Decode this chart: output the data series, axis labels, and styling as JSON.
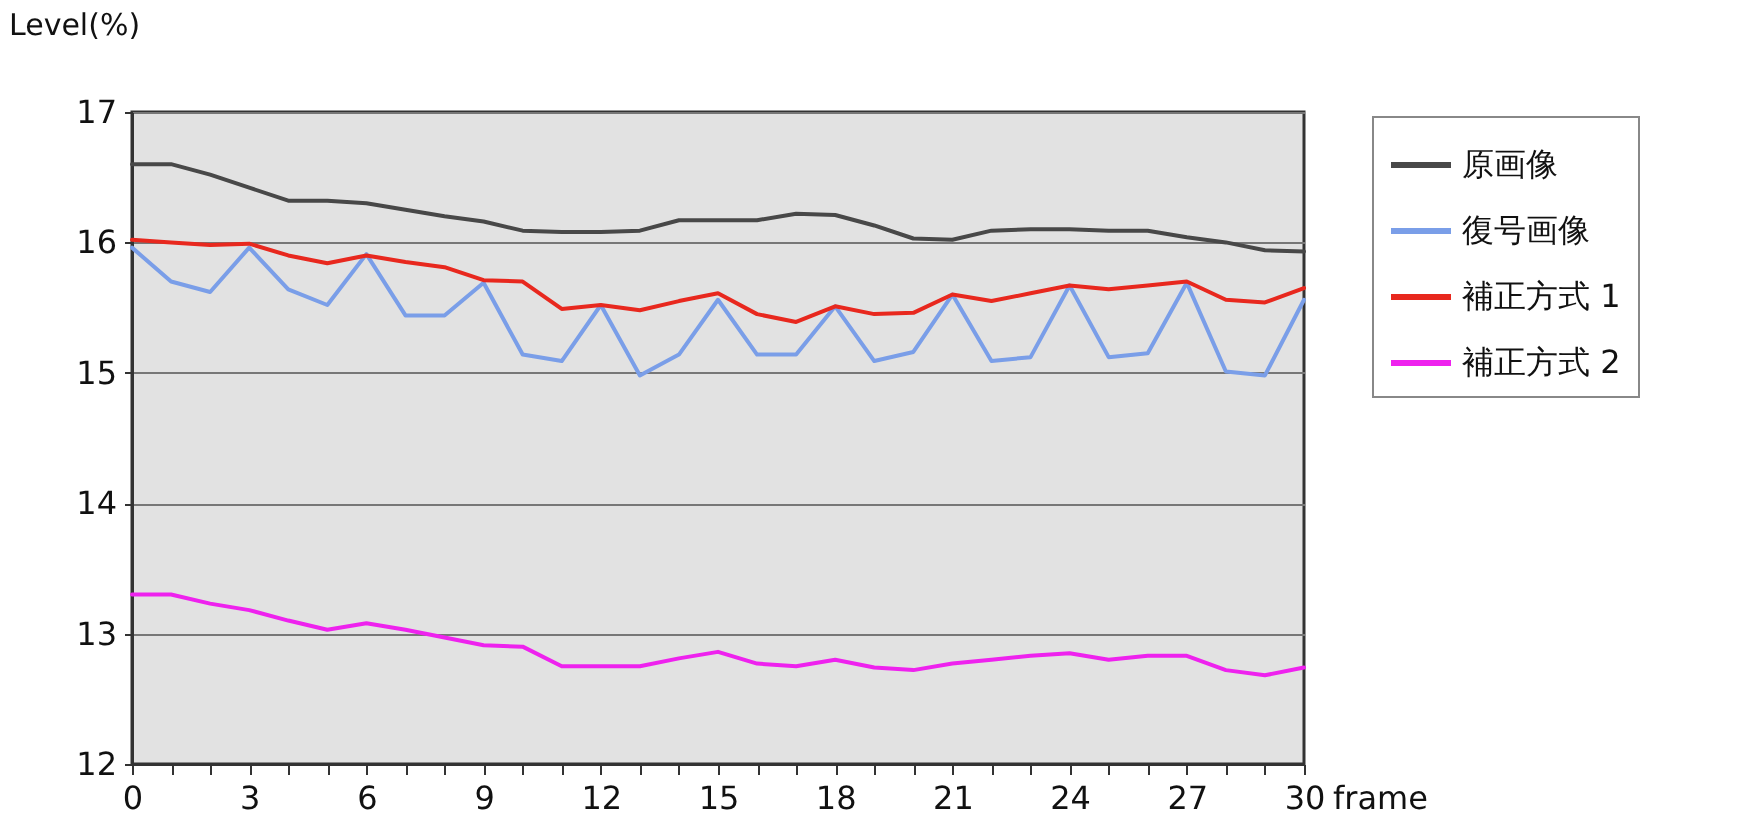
{
  "chart_data": {
    "type": "line",
    "xlabel": "frame",
    "ylabel": "Level(%)",
    "x": [
      0,
      1,
      2,
      3,
      4,
      5,
      6,
      7,
      8,
      9,
      10,
      11,
      12,
      13,
      14,
      15,
      16,
      17,
      18,
      19,
      20,
      21,
      22,
      23,
      24,
      25,
      26,
      27,
      28,
      29,
      30
    ],
    "series": [
      {
        "name": "原画像",
        "color": "#484848",
        "values": [
          16.6,
          16.6,
          16.52,
          16.42,
          16.32,
          16.32,
          16.3,
          16.25,
          16.2,
          16.16,
          16.09,
          16.08,
          16.08,
          16.09,
          16.17,
          16.17,
          16.17,
          16.22,
          16.21,
          16.13,
          16.03,
          16.02,
          16.09,
          16.1,
          16.1,
          16.09,
          16.09,
          16.04,
          16.0,
          15.94,
          15.93
        ]
      },
      {
        "name": "復号画像",
        "color": "#7a9ee8",
        "values": [
          15.96,
          15.7,
          15.62,
          15.96,
          15.64,
          15.52,
          15.91,
          15.44,
          15.44,
          15.69,
          15.14,
          15.09,
          15.52,
          14.98,
          15.14,
          15.56,
          15.14,
          15.14,
          15.51,
          15.09,
          15.16,
          15.6,
          15.09,
          15.12,
          15.67,
          15.12,
          15.15,
          15.69,
          15.01,
          14.98,
          15.56
        ]
      },
      {
        "name": "補正方式 1",
        "color": "#e8281e",
        "values": [
          16.02,
          16.0,
          15.98,
          15.99,
          15.9,
          15.84,
          15.9,
          15.85,
          15.81,
          15.71,
          15.7,
          15.49,
          15.52,
          15.48,
          15.55,
          15.61,
          15.45,
          15.39,
          15.51,
          15.45,
          15.46,
          15.6,
          15.55,
          15.61,
          15.67,
          15.64,
          15.67,
          15.7,
          15.56,
          15.54,
          15.65
        ]
      },
      {
        "name": "補正方式 2",
        "color": "#ee22ee",
        "values": [
          13.3,
          13.3,
          13.23,
          13.18,
          13.1,
          13.03,
          13.08,
          13.03,
          12.97,
          12.91,
          12.9,
          12.75,
          12.75,
          12.75,
          12.81,
          12.86,
          12.77,
          12.75,
          12.8,
          12.74,
          12.72,
          12.77,
          12.8,
          12.83,
          12.85,
          12.8,
          12.83,
          12.83,
          12.72,
          12.68,
          12.74
        ]
      }
    ],
    "xlim": [
      0,
      30
    ],
    "xticks": [
      0,
      {
        "value": 1,
        "label": null
      },
      {
        "value": 2,
        "label": null
      },
      3,
      {
        "value": 4,
        "label": null
      },
      {
        "value": 5,
        "label": null
      },
      6,
      {
        "value": 7,
        "label": null
      },
      {
        "value": 8,
        "label": null
      },
      9,
      {
        "value": 10,
        "label": null
      },
      {
        "value": 11,
        "label": null
      },
      12,
      {
        "value": 13,
        "label": null
      },
      {
        "value": 14,
        "label": null
      },
      15,
      {
        "value": 16,
        "label": null
      },
      {
        "value": 17,
        "label": null
      },
      18,
      {
        "value": 19,
        "label": null
      },
      {
        "value": 20,
        "label": null
      },
      21,
      {
        "value": 22,
        "label": null
      },
      {
        "value": 23,
        "label": null
      },
      24,
      {
        "value": 25,
        "label": null
      },
      {
        "value": 26,
        "label": null
      },
      27,
      {
        "value": 28,
        "label": null
      },
      {
        "value": 29,
        "label": null
      },
      30
    ],
    "ylim": [
      12,
      17
    ],
    "yticks": [
      12,
      13,
      14,
      15,
      16,
      17
    ],
    "grid": "y",
    "legend": "top right",
    "marker": "none",
    "line_style": "solid"
  }
}
